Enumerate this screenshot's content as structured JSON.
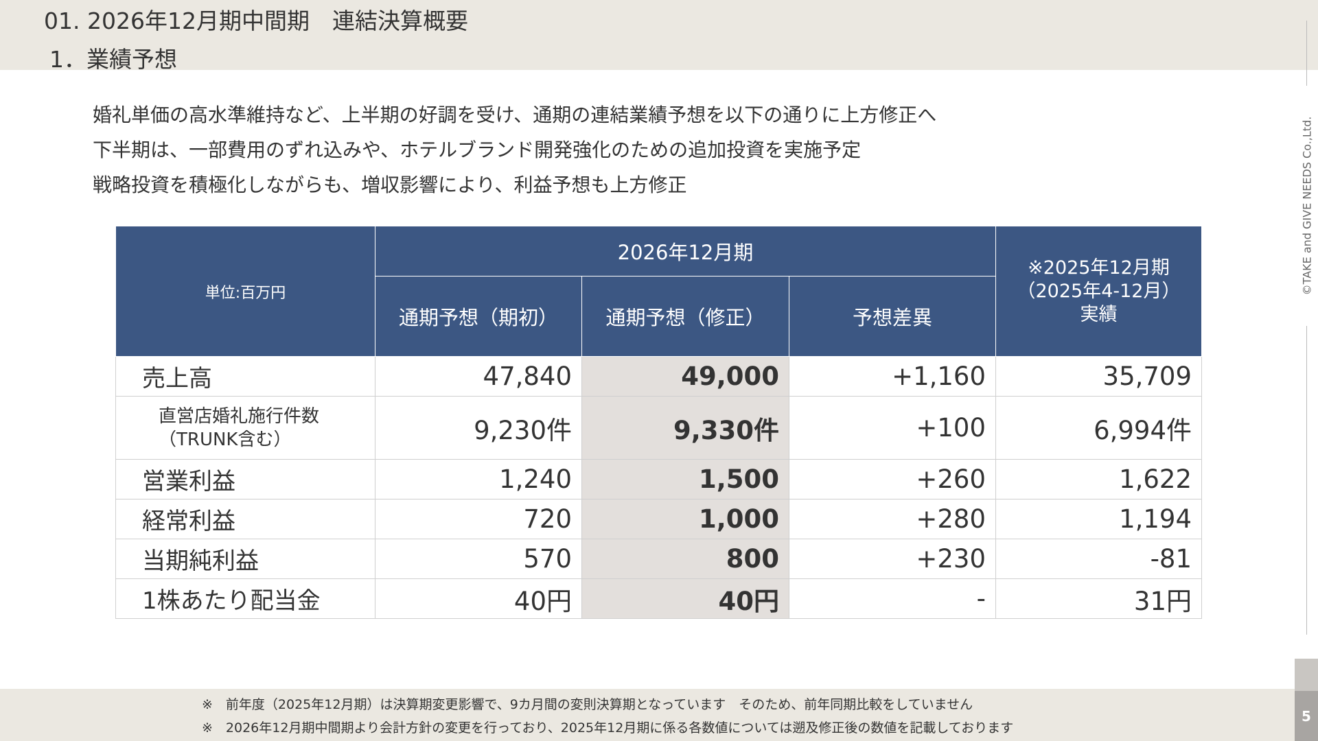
{
  "header": {
    "title": "01. 2026年12月期中間期　連結決算概要",
    "subtitle": "1．業績予想"
  },
  "bullets": [
    "婚礼単価の高水準維持など、上半期の好調を受け、通期の連結業績予想を以下の通りに上方修正へ",
    "下半期は、一部費用のずれ込みや、ホテルブランド開発強化のための追加投資を実施予定",
    "戦略投資を積極化しながらも、増収影響により、利益予想も上方修正"
  ],
  "table": {
    "unit_label": "単位:百万円",
    "period_header": "2026年12月期",
    "column_headers": [
      "通期予想（期初）",
      "通期予想（修正）",
      "予想差異"
    ],
    "prior_header": [
      "※2025年12月期",
      "（2025年4-12月）",
      "実績"
    ],
    "rows": [
      {
        "label": [
          "売上高"
        ],
        "values": [
          "47,840",
          "49,000",
          "+1,160",
          "35,709"
        ]
      },
      {
        "label": [
          "直営店婚礼施行件数",
          "（TRUNK含む）"
        ],
        "values": [
          "9,230件",
          "9,330件",
          "+100",
          "6,994件"
        ]
      },
      {
        "label": [
          "営業利益"
        ],
        "values": [
          "1,240",
          "1,500",
          "+260",
          "1,622"
        ]
      },
      {
        "label": [
          "経常利益"
        ],
        "values": [
          "720",
          "1,000",
          "+280",
          "1,194"
        ]
      },
      {
        "label": [
          "当期純利益"
        ],
        "values": [
          "570",
          "800",
          "+230",
          "-81"
        ]
      },
      {
        "label": [
          "1株あたり配当金"
        ],
        "values": [
          "40円",
          "40円",
          "-",
          "31円"
        ]
      }
    ]
  },
  "footer_notes": [
    "※　前年度（2025年12月期）は決算期変更影響で、9カ月間の変則決算期となっています　そのため、前年同期比較をしていません",
    "※　2026年12月期中間期より会計方針の変更を行っており、2025年12月期に係る各数値については遡及修正後の数値を記載しております"
  ],
  "copyright": "©TAKE and GIVE NEEDS Co.,Ltd.",
  "page_number": "5"
}
